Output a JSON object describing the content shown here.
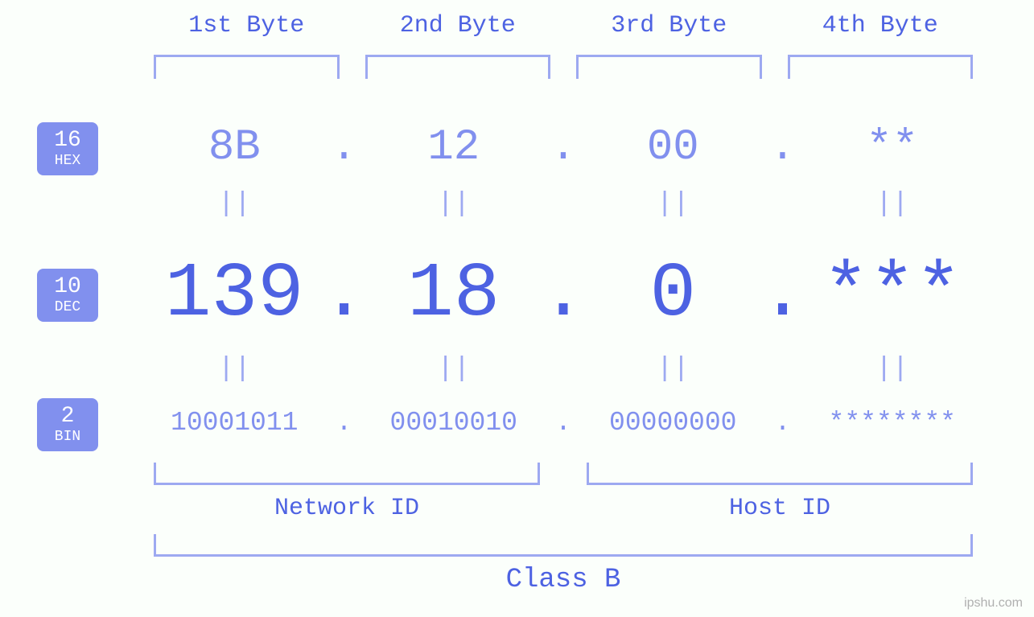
{
  "type": "infographic",
  "colors": {
    "background": "#fbfffb",
    "primary_text": "#4d62e2",
    "secondary_text": "#8190ee",
    "bracket": "#9da9f1",
    "badge_bg": "#8190ee",
    "badge_text": "#ffffff",
    "watermark": "#b0b0b0"
  },
  "typography": {
    "font_family": "monospace",
    "byte_label_fontsize": 30,
    "hex_fontsize": 54,
    "dec_fontsize": 96,
    "bin_fontsize": 33,
    "equals_fontsize": 34,
    "badge_num_fontsize": 28,
    "badge_label_fontsize": 18,
    "bottom_label_fontsize": 30,
    "class_label_fontsize": 34
  },
  "byte_headers": {
    "b1": "1st Byte",
    "b2": "2nd Byte",
    "b3": "3rd Byte",
    "b4": "4th Byte"
  },
  "bases": {
    "hex": {
      "num": "16",
      "label": "HEX"
    },
    "dec": {
      "num": "10",
      "label": "DEC"
    },
    "bin": {
      "num": "2",
      "label": "BIN"
    }
  },
  "bytes": {
    "hex": {
      "b1": "8B",
      "b2": "12",
      "b3": "00",
      "b4": "**"
    },
    "dec": {
      "b1": "139",
      "b2": "18",
      "b3": "0",
      "b4": "***"
    },
    "bin": {
      "b1": "10001011",
      "b2": "00010010",
      "b3": "00000000",
      "b4": "********"
    }
  },
  "separators": {
    "dot": ".",
    "equals": "||"
  },
  "sections": {
    "network_id": "Network ID",
    "host_id": "Host ID",
    "class": "Class B"
  },
  "network_id_byte_span": [
    1,
    2
  ],
  "host_id_byte_span": [
    3,
    4
  ],
  "watermark": "ipshu.com"
}
